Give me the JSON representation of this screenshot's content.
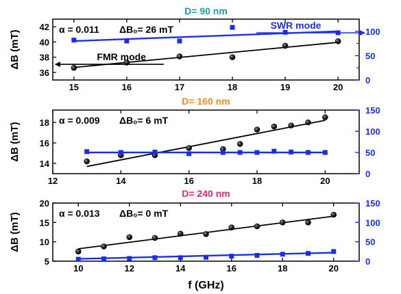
{
  "chart_data": [
    {
      "type": "scatter",
      "title": "D= 90 nm",
      "title_color": "#1f9aa8",
      "annotation": {
        "alpha_label": "α = 0.011",
        "db_label": "ΔB₀= 26 mT"
      },
      "xlim": [
        14.6,
        20.4
      ],
      "x_ticks": [
        15,
        16,
        17,
        18,
        19,
        20
      ],
      "ylabel": "ΔB (mT)",
      "ylim": [
        35,
        43
      ],
      "y_ticks": [
        36,
        38,
        40,
        42
      ],
      "y2lim": [
        0,
        125
      ],
      "y2_ticks": [
        0,
        50,
        100
      ],
      "y2_minor_ticks": [
        25,
        75
      ],
      "y2_tick_labels": [
        "0",
        "50",
        "100"
      ],
      "series": [
        {
          "axis": "left",
          "color": "#000000",
          "marker": "circle",
          "x": [
            15,
            16,
            17,
            18,
            19,
            20
          ],
          "y": [
            36.6,
            37.3,
            38.1,
            38.0,
            39.5,
            40.1
          ],
          "fit": [
            [
              15,
              36.65
            ],
            [
              20,
              39.95
            ]
          ]
        },
        {
          "axis": "right",
          "color": "#1a2ee6",
          "marker": "square",
          "x": [
            15,
            16,
            17,
            18,
            19,
            20
          ],
          "y": [
            82,
            80,
            80,
            108,
            98,
            97
          ],
          "fit": [
            [
              15,
              80
            ],
            [
              20,
              100
            ]
          ]
        }
      ],
      "labels": [
        {
          "text": "SWR mode",
          "arrow": "right",
          "color": "#1a2ee6"
        },
        {
          "text": "FMR mode",
          "arrow": "left",
          "color": "#000000"
        }
      ]
    },
    {
      "type": "scatter",
      "title": "D= 160 nm",
      "title_color": "#f08a1c",
      "annotation": {
        "alpha_label": "α = 0.009",
        "db_label": "ΔB₀= 6 mT"
      },
      "xlim": [
        12,
        21
      ],
      "x_ticks": [
        12,
        14,
        16,
        18,
        20
      ],
      "ylabel": "ΔB (mT)",
      "ylim": [
        13,
        19.2
      ],
      "y_ticks": [
        14,
        16,
        18
      ],
      "y2lim": [
        0,
        150
      ],
      "y2_ticks": [
        0,
        50,
        100,
        150
      ],
      "y2_tick_labels": [
        "0",
        "50",
        "100",
        "150"
      ],
      "series": [
        {
          "axis": "left",
          "color": "#000000",
          "marker": "circle",
          "x": [
            13,
            14,
            15,
            16,
            17,
            17.5,
            18,
            18.5,
            19,
            19.5,
            20
          ],
          "y": [
            14.2,
            14.8,
            14.8,
            15.5,
            15.4,
            15.9,
            17.3,
            17.6,
            17.7,
            18.0,
            18.5
          ],
          "fit": [
            [
              13,
              13.7
            ],
            [
              20,
              18.2
            ]
          ]
        },
        {
          "axis": "right",
          "color": "#1a2ee6",
          "marker": "square",
          "x": [
            13,
            14,
            15,
            16,
            17,
            17.5,
            18,
            18.5,
            19,
            19.5,
            20
          ],
          "y": [
            52,
            50,
            51,
            47,
            50,
            50,
            50,
            53,
            51,
            50,
            50
          ],
          "fit": [
            [
              13,
              50
            ],
            [
              20,
              50
            ]
          ]
        }
      ]
    },
    {
      "type": "scatter",
      "title": "D= 240 nm",
      "title_color": "#e0267a",
      "annotation": {
        "alpha_label": "α = 0.013",
        "db_label": "ΔB₀= 0 mT"
      },
      "xlim": [
        9,
        21
      ],
      "x_ticks": [
        10,
        12,
        14,
        16,
        18,
        20
      ],
      "xlabel": "f (GHz)",
      "ylabel": "ΔB (mT)",
      "ylim": [
        5,
        20
      ],
      "y_ticks": [
        5,
        10,
        15,
        20
      ],
      "y2lim": [
        0,
        150
      ],
      "y2_ticks": [
        0,
        50,
        100,
        150
      ],
      "y2_tick_labels": [
        "0",
        "50",
        "100",
        "150"
      ],
      "series": [
        {
          "axis": "left",
          "color": "#000000",
          "marker": "circle",
          "x": [
            10,
            11,
            12,
            13,
            14,
            15,
            16,
            17,
            18,
            19,
            20
          ],
          "y": [
            7.5,
            8.8,
            11.2,
            11.0,
            12.1,
            12.0,
            13.7,
            14.0,
            15.0,
            15.0,
            17.0
          ],
          "fit": [
            [
              10,
              8.2
            ],
            [
              20,
              16.6
            ]
          ]
        },
        {
          "axis": "right",
          "color": "#1a2ee6",
          "marker": "square",
          "x": [
            10,
            11,
            12,
            13,
            14,
            15,
            16,
            17,
            18,
            19,
            20
          ],
          "y": [
            5,
            6,
            7,
            9,
            9,
            10,
            13,
            15,
            18,
            20,
            25
          ],
          "fit": [
            [
              10,
              6
            ],
            [
              20,
              22
            ]
          ]
        }
      ]
    }
  ]
}
